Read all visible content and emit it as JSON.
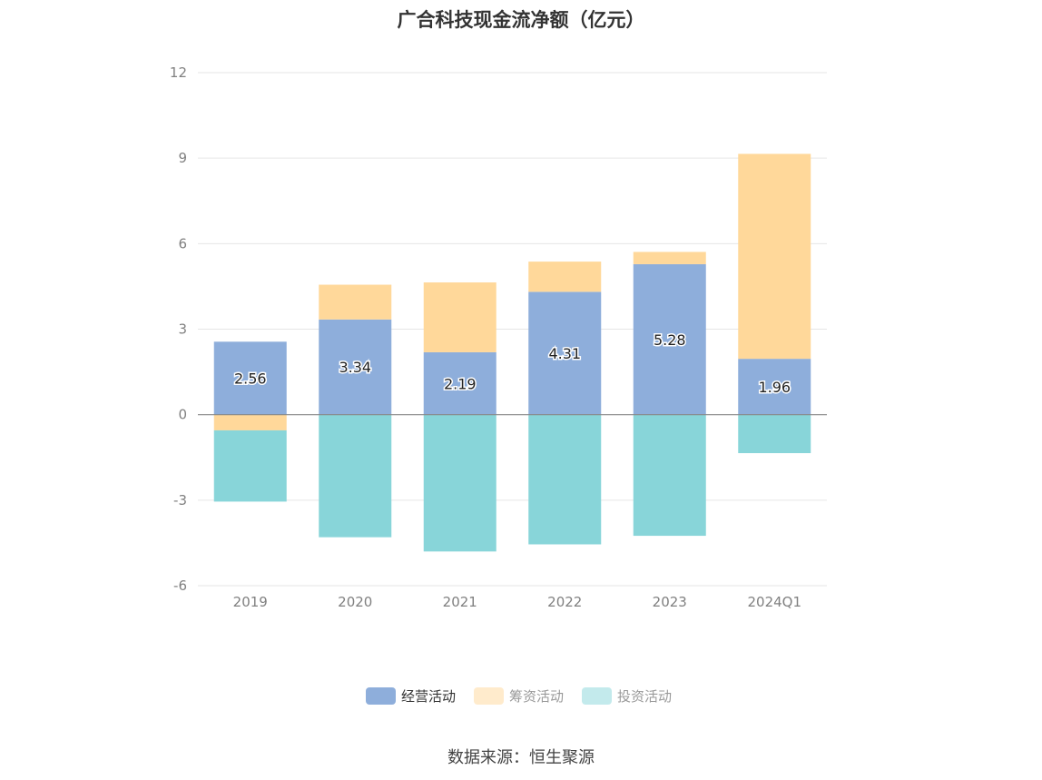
{
  "chart_data": {
    "type": "bar",
    "stacked": true,
    "title": "广合科技现金流净额（亿元）",
    "categories": [
      "2019",
      "2020",
      "2021",
      "2022",
      "2023",
      "2024Q1"
    ],
    "series": [
      {
        "name": "经营活动",
        "color": "#8eaedb",
        "values": [
          2.56,
          3.34,
          2.19,
          4.31,
          5.28,
          1.96
        ],
        "show_labels": true
      },
      {
        "name": "筹资活动",
        "color": "#ffd89a",
        "values": [
          -0.55,
          1.22,
          2.45,
          1.06,
          0.43,
          7.19
        ],
        "show_labels": false
      },
      {
        "name": "投资活动",
        "color": "#88d5d9",
        "values": [
          -2.5,
          -4.3,
          -4.8,
          -4.55,
          -4.25,
          -1.35
        ],
        "show_labels": false
      }
    ],
    "ylim": [
      -6,
      12
    ],
    "yticks": [
      -6,
      -3,
      0,
      3,
      6,
      9,
      12
    ],
    "legend_position": "bottom",
    "grid": true
  },
  "source": "数据来源：恒生聚源",
  "colors": {
    "grid": "#e6e6e6",
    "axis": "#888888",
    "legend_active_text": "#333333",
    "legend_inactive_text": "#999999"
  }
}
